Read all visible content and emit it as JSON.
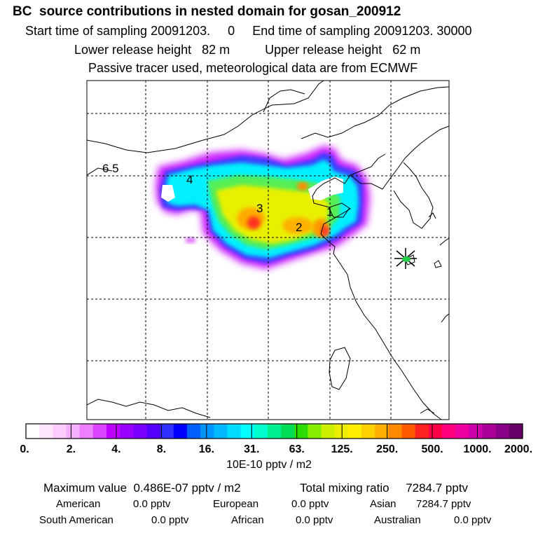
{
  "header": {
    "title": "BC  source contributions in nested domain for gosan_200912",
    "start_label": "Start time of sampling",
    "start_value": "20091203.     0",
    "end_label": "End time of sampling",
    "end_value": "20091203. 30000",
    "lower_label": "Lower release height",
    "lower_value": "82 m",
    "upper_label": "Upper release height",
    "upper_value": "62 m",
    "note": "Passive tracer used, meteorological data are from ECMWF"
  },
  "chart_data": {
    "type": "heatmap",
    "title": "BC  source contributions in nested domain for gosan_200912",
    "colorbar_label": "10E-10 pptv / m2",
    "colorbar_ticks": [
      "0.",
      "2.",
      "4.",
      "8.",
      "16.",
      "31.",
      "63.",
      "125.",
      "250.",
      "500.",
      "1000.",
      "2000."
    ],
    "colorbar_colors": [
      "#ffffff",
      "#ffe6ff",
      "#ffccff",
      "#f5b0ff",
      "#ee80ff",
      "#dd44ff",
      "#c000ff",
      "#9a00ff",
      "#7a00ff",
      "#5500ff",
      "#3030ff",
      "#0000ff",
      "#0060ff",
      "#0096ff",
      "#00b8ff",
      "#00dcff",
      "#00ffff",
      "#00ffcc",
      "#00f090",
      "#00dd55",
      "#2bdd00",
      "#88ee00",
      "#ccf000",
      "#eeee00",
      "#ffee00",
      "#ffd000",
      "#ffb000",
      "#ff8a00",
      "#ff5a00",
      "#ff2020",
      "#ff0044",
      "#ff0080",
      "#ee00a0",
      "#cc00aa",
      "#a80099",
      "#880088",
      "#660066"
    ],
    "source_markers": [
      {
        "label": "1",
        "note": "source region 1"
      },
      {
        "label": "2",
        "note": "source region 2"
      },
      {
        "label": "3",
        "note": "source region 3"
      },
      {
        "label": "4",
        "note": "source region 4"
      },
      {
        "label": "6 5",
        "note": "source regions 5 and 6"
      }
    ],
    "receptor": "Gosan station marker"
  },
  "stats": {
    "max_label": "Maximum value",
    "max_value": "0.486E-07 pptv / m2",
    "total_label": "Total mixing ratio",
    "total_value": "7284.7 pptv",
    "regions": [
      {
        "name": "American",
        "value": "0.0 pptv"
      },
      {
        "name": "European",
        "value": "0.0 pptv"
      },
      {
        "name": "Asian",
        "value": "7284.7 pptv"
      },
      {
        "name": "South American",
        "value": "0.0 pptv"
      },
      {
        "name": "African",
        "value": "0.0 pptv"
      },
      {
        "name": "Australian",
        "value": "0.0 pptv"
      }
    ]
  }
}
